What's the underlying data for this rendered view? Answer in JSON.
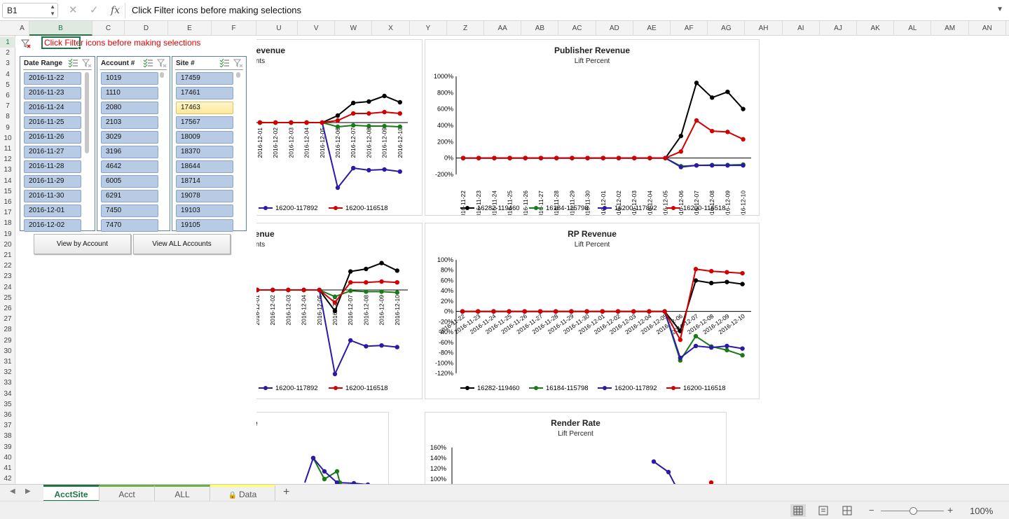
{
  "formula_bar": {
    "cell_ref": "B1",
    "formula": "Click Filter icons before making selections"
  },
  "columns_left": [
    "A",
    "B",
    "C",
    "D",
    "E",
    "F"
  ],
  "columns_right": [
    "U",
    "V",
    "W",
    "X",
    "Y",
    "Z",
    "AA",
    "AB",
    "AC",
    "AD",
    "AE",
    "AF",
    "AG",
    "AH",
    "AI",
    "AJ",
    "AK",
    "AL",
    "AM",
    "AN"
  ],
  "rows": [
    "1",
    "2",
    "3",
    "4",
    "5",
    "6",
    "7",
    "8",
    "9",
    "10",
    "11",
    "12",
    "13",
    "14",
    "15",
    "16",
    "17",
    "18",
    "19",
    "20",
    "21",
    "22",
    "23",
    "24",
    "25",
    "26",
    "27",
    "28",
    "29",
    "30",
    "31",
    "32",
    "33",
    "34",
    "35",
    "36",
    "37",
    "38",
    "39",
    "40",
    "41",
    "42"
  ],
  "note": "Click Filter icons before making selections",
  "slicers": [
    {
      "title": "Date Range",
      "items": [
        "2016-11-22",
        "2016-11-23",
        "2016-11-24",
        "2016-11-25",
        "2016-11-26",
        "2016-11-27",
        "2016-11-28",
        "2016-11-29",
        "2016-11-30",
        "2016-12-01",
        "2016-12-02"
      ],
      "selected": []
    },
    {
      "title": "Account #",
      "items": [
        "1019",
        "1110",
        "2080",
        "2103",
        "3029",
        "3196",
        "4642",
        "6005",
        "6291",
        "7450",
        "7470"
      ],
      "selected": []
    },
    {
      "title": "Site #",
      "items": [
        "17459",
        "17461",
        "17463",
        "17567",
        "18009",
        "18370",
        "18644",
        "18714",
        "19078",
        "19103",
        "19105"
      ],
      "selected": [
        "17463"
      ]
    }
  ],
  "buttons": {
    "view_by_account": "View by Account",
    "view_all_accounts": "View ALL Accounts"
  },
  "colors": {
    "black": "#000000",
    "green": "#1a7a1a",
    "blue": "#2a1aa6",
    "red": "#d40000",
    "excel_green": "#217346"
  },
  "tabs": [
    {
      "label": "AcctSite",
      "active": true,
      "color": "#217346"
    },
    {
      "label": "Acct",
      "active": false,
      "color": "#70ad47"
    },
    {
      "label": "ALL",
      "active": false,
      "color": "#70ad47"
    },
    {
      "label": "Data",
      "active": false,
      "color": "#ffff66",
      "locked": true
    }
  ],
  "status": {
    "zoom": "100%"
  },
  "chart_data": [
    {
      "type": "line",
      "title": "Revenue",
      "subtitle": "oints",
      "x": [
        "2016-12-01",
        "2016-12-02",
        "2016-12-03",
        "2016-12-04",
        "2016-12-05",
        "2016-12-06",
        "2016-12-07",
        "2016-12-08",
        "2016-12-09",
        "2016-12-10"
      ],
      "series": [
        {
          "name": "16282-119460",
          "color": "#000000",
          "values": [
            0,
            0,
            0,
            0,
            0,
            10,
            28,
            30,
            38,
            29
          ]
        },
        {
          "name": "16184-115798",
          "color": "#1a7a1a",
          "values": [
            0,
            0,
            0,
            0,
            0,
            -6,
            -4,
            -5,
            -5,
            -6
          ]
        },
        {
          "name": "16200-117892",
          "color": "#2a1aa6",
          "values": [
            0,
            0,
            0,
            0,
            0,
            -93,
            -65,
            -68,
            -67,
            -70
          ]
        },
        {
          "name": "16200-116518",
          "color": "#d40000",
          "values": [
            0,
            0,
            0,
            0,
            0,
            3,
            13,
            13,
            15,
            13
          ]
        }
      ],
      "legend_visible": [
        "16200-117892",
        "16200-116518"
      ]
    },
    {
      "type": "line",
      "title": "Publisher Revenue",
      "subtitle": "Lift Percent",
      "ylim": [
        -200,
        1000
      ],
      "yticks": [
        "1000%",
        "800%",
        "600%",
        "400%",
        "200%",
        "0%",
        "-200%"
      ],
      "x": [
        "2016-11-22",
        "2016-11-23",
        "2016-11-24",
        "2016-11-25",
        "2016-11-26",
        "2016-11-27",
        "2016-11-28",
        "2016-11-29",
        "2016-11-30",
        "2016-12-01",
        "2016-12-02",
        "2016-12-03",
        "2016-12-04",
        "2016-12-05",
        "2016-12-06",
        "2016-12-07",
        "2016-12-08",
        "2016-12-09",
        "2016-12-10"
      ],
      "series": [
        {
          "name": "16282-119460",
          "color": "#000000",
          "values": [
            0,
            0,
            0,
            0,
            0,
            0,
            0,
            0,
            0,
            0,
            0,
            0,
            0,
            0,
            270,
            920,
            740,
            810,
            600
          ]
        },
        {
          "name": "16184-115798",
          "color": "#1a7a1a",
          "values": [
            0,
            0,
            0,
            0,
            0,
            0,
            0,
            0,
            0,
            0,
            0,
            0,
            0,
            0,
            -100,
            -90,
            -85,
            -85,
            -80
          ]
        },
        {
          "name": "16200-117892",
          "color": "#2a1aa6",
          "values": [
            0,
            0,
            0,
            0,
            0,
            0,
            0,
            0,
            0,
            0,
            0,
            0,
            0,
            0,
            -110,
            -90,
            -90,
            -90,
            -90
          ]
        },
        {
          "name": "16200-116518",
          "color": "#d40000",
          "values": [
            0,
            0,
            0,
            0,
            0,
            0,
            0,
            0,
            0,
            0,
            0,
            0,
            0,
            0,
            80,
            460,
            330,
            320,
            230
          ]
        }
      ]
    },
    {
      "type": "line",
      "title": "venue",
      "subtitle": "oints",
      "x": [
        "2016-12-01",
        "2016-12-02",
        "2016-12-03",
        "2016-12-04",
        "2016-12-05",
        "2016-12-06",
        "2016-12-07",
        "2016-12-08",
        "2016-12-09",
        "2016-12-10"
      ],
      "series": [
        {
          "name": "16282-119460",
          "color": "#000000",
          "values": [
            0,
            0,
            0,
            0,
            0,
            -25,
            22,
            25,
            32,
            23
          ]
        },
        {
          "name": "16184-115798",
          "color": "#1a7a1a",
          "values": [
            0,
            0,
            0,
            0,
            0,
            -8,
            -1,
            -2,
            -2,
            -3
          ]
        },
        {
          "name": "16200-117892",
          "color": "#2a1aa6",
          "values": [
            0,
            0,
            0,
            0,
            0,
            -100,
            -60,
            -67,
            -66,
            -68
          ]
        },
        {
          "name": "16200-116518",
          "color": "#d40000",
          "values": [
            0,
            0,
            0,
            0,
            0,
            -15,
            9,
            9,
            10,
            9
          ]
        }
      ],
      "legend_visible": [
        "16200-117892",
        "16200-116518"
      ]
    },
    {
      "type": "line",
      "title": "RP Revenue",
      "subtitle": "Lift Percent",
      "ylim": [
        -120,
        100
      ],
      "yticks": [
        "100%",
        "80%",
        "60%",
        "40%",
        "20%",
        "0%",
        "-20%",
        "-40%",
        "-60%",
        "-80%",
        "-100%",
        "-120%"
      ],
      "x": [
        "2016-11-22",
        "2016-11-23",
        "2016-11-24",
        "2016-11-25",
        "2016-11-26",
        "2016-11-27",
        "2016-11-28",
        "2016-11-29",
        "2016-11-30",
        "2016-12-01",
        "2016-12-02",
        "2016-12-03",
        "2016-12-04",
        "2016-12-05",
        "2016-12-06",
        "2016-12-07",
        "2016-12-08",
        "2016-12-09",
        "2016-12-10"
      ],
      "series": [
        {
          "name": "16282-119460",
          "color": "#000000",
          "values": [
            0,
            0,
            0,
            0,
            0,
            0,
            0,
            0,
            0,
            0,
            0,
            0,
            0,
            0,
            -38,
            60,
            55,
            57,
            53
          ]
        },
        {
          "name": "16184-115798",
          "color": "#1a7a1a",
          "values": [
            0,
            0,
            0,
            0,
            0,
            0,
            0,
            0,
            0,
            0,
            0,
            0,
            0,
            0,
            -95,
            -48,
            -68,
            -75,
            -85
          ]
        },
        {
          "name": "16200-117892",
          "color": "#2a1aa6",
          "values": [
            0,
            0,
            0,
            0,
            0,
            0,
            0,
            0,
            0,
            0,
            0,
            0,
            0,
            0,
            -90,
            -67,
            -70,
            -67,
            -72
          ]
        },
        {
          "name": "16200-116518",
          "color": "#d40000",
          "values": [
            0,
            0,
            0,
            0,
            0,
            0,
            0,
            0,
            0,
            0,
            0,
            0,
            0,
            0,
            -55,
            82,
            78,
            76,
            74
          ]
        }
      ]
    },
    {
      "type": "line",
      "title": "te",
      "series": [
        {
          "name": "16184-115798",
          "color": "#1a7a1a",
          "values": [
            100,
            60,
            75,
            40
          ]
        },
        {
          "name": "16200-117892",
          "color": "#2a1aa6",
          "values": [
            100,
            75,
            45,
            45,
            40
          ]
        }
      ]
    },
    {
      "type": "line",
      "title": "Render Rate",
      "subtitle": "Lift Percent",
      "yticks": [
        "160%",
        "140%",
        "120%",
        "100%"
      ],
      "series": [
        {
          "name": "16200-117892",
          "color": "#2a1aa6",
          "values": [
            135,
            115,
            80
          ]
        },
        {
          "name": "16200-116518",
          "color": "#d40000",
          "values": [
            93
          ]
        }
      ]
    }
  ]
}
